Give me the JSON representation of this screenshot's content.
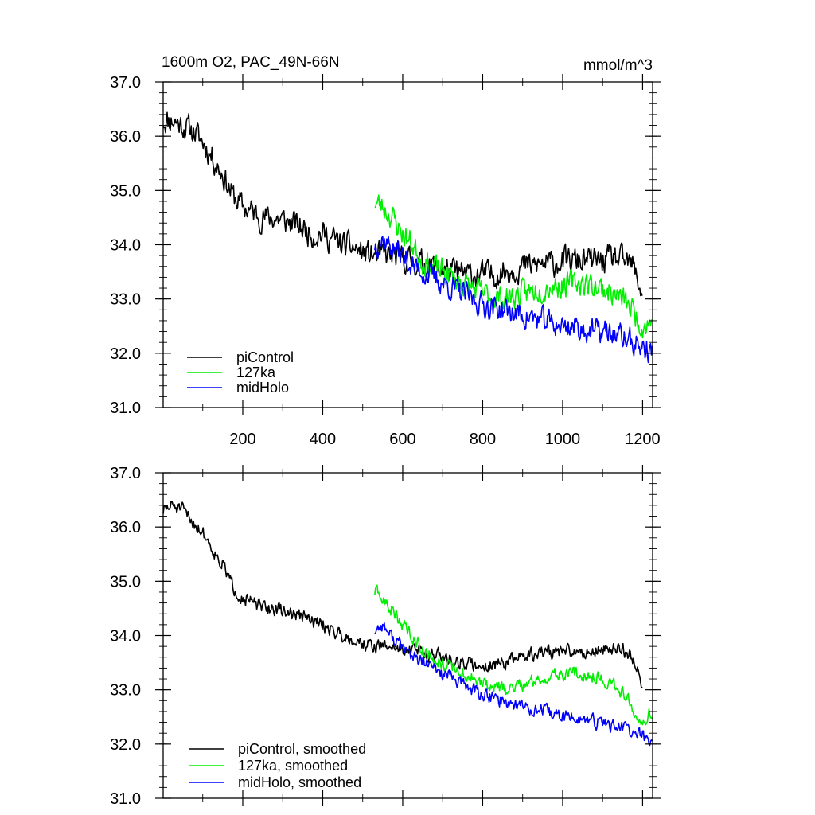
{
  "chart_data": [
    {
      "type": "line",
      "title": "1600m O2, PAC_49N-66N",
      "units_label": "mmol/m^3",
      "xlim": [
        1,
        1225
      ],
      "ylim": [
        31.0,
        37.0
      ],
      "x_ticks": [
        200,
        400,
        600,
        800,
        1000,
        1200
      ],
      "x_tick_labels": [
        "200",
        "400",
        "600",
        "800",
        "1000",
        "1200"
      ],
      "y_ticks": [
        31.0,
        32.0,
        33.0,
        34.0,
        35.0,
        36.0,
        37.0
      ],
      "y_tick_labels": [
        "31.0",
        "32.0",
        "33.0",
        "34.0",
        "35.0",
        "36.0",
        "37.0"
      ],
      "legend_position": "bottom-left",
      "series": [
        {
          "name": "piControl",
          "color": "#000000",
          "x": [
            1,
            25,
            50,
            75,
            100,
            125,
            150,
            175,
            200,
            225,
            250,
            275,
            300,
            325,
            350,
            375,
            400,
            425,
            450,
            475,
            500,
            525,
            550,
            575,
            600,
            625,
            650,
            675,
            700,
            725,
            750,
            775,
            800,
            825,
            850,
            875,
            900,
            925,
            950,
            975,
            1000,
            1025,
            1050,
            1075,
            1100,
            1125,
            1150,
            1175,
            1200
          ],
          "values": [
            36.3,
            36.3,
            36.2,
            36.1,
            35.9,
            35.6,
            35.3,
            34.9,
            34.7,
            34.6,
            34.5,
            34.5,
            34.45,
            34.4,
            34.3,
            34.2,
            34.2,
            34.1,
            34.0,
            33.95,
            33.85,
            33.8,
            33.8,
            33.8,
            33.75,
            33.7,
            33.65,
            33.6,
            33.55,
            33.5,
            33.45,
            33.45,
            33.45,
            33.45,
            33.5,
            33.55,
            33.6,
            33.6,
            33.65,
            33.65,
            33.7,
            33.7,
            33.7,
            33.7,
            33.7,
            33.75,
            33.7,
            33.6,
            33.1
          ],
          "noise": 0.38,
          "seed": 11
        },
        {
          "name": "127ka",
          "color": "#00ee00",
          "x": [
            530,
            550,
            575,
            600,
            625,
            650,
            675,
            700,
            725,
            750,
            775,
            800,
            825,
            850,
            875,
            900,
            925,
            950,
            975,
            1000,
            1025,
            1050,
            1075,
            1100,
            1125,
            1150,
            1175,
            1200,
            1225
          ],
          "values": [
            34.8,
            34.7,
            34.5,
            34.2,
            34.0,
            33.7,
            33.6,
            33.5,
            33.4,
            33.3,
            33.2,
            33.1,
            33.05,
            33.0,
            33.05,
            33.1,
            33.15,
            33.2,
            33.25,
            33.25,
            33.3,
            33.3,
            33.25,
            33.2,
            33.1,
            33.0,
            32.8,
            32.5,
            32.6
          ],
          "noise": 0.36,
          "seed": 23
        },
        {
          "name": "midHolo",
          "color": "#0000ff",
          "x": [
            530,
            550,
            575,
            600,
            625,
            650,
            675,
            700,
            725,
            750,
            775,
            800,
            825,
            850,
            875,
            900,
            925,
            950,
            975,
            1000,
            1025,
            1050,
            1075,
            1100,
            1125,
            1150,
            1175,
            1200,
            1225
          ],
          "values": [
            34.0,
            34.1,
            33.95,
            33.8,
            33.6,
            33.5,
            33.4,
            33.3,
            33.2,
            33.1,
            33.0,
            32.9,
            32.85,
            32.8,
            32.75,
            32.7,
            32.65,
            32.6,
            32.55,
            32.5,
            32.5,
            32.45,
            32.4,
            32.4,
            32.35,
            32.3,
            32.2,
            32.1,
            32.0
          ],
          "noise": 0.36,
          "seed": 37
        }
      ]
    },
    {
      "type": "line",
      "xlim": [
        1,
        1225
      ],
      "ylim": [
        31.0,
        37.0
      ],
      "x_ticks": [
        200,
        400,
        600,
        800,
        1000,
        1200
      ],
      "y_ticks": [
        31.0,
        32.0,
        33.0,
        34.0,
        35.0,
        36.0,
        37.0
      ],
      "y_tick_labels": [
        "31.0",
        "32.0",
        "33.0",
        "34.0",
        "35.0",
        "36.0",
        "37.0"
      ],
      "legend_position": "bottom-left",
      "series": [
        {
          "name": "piControl, smoothed",
          "color": "#000000",
          "x": [
            1,
            25,
            50,
            75,
            100,
            125,
            150,
            175,
            200,
            225,
            250,
            275,
            300,
            325,
            350,
            375,
            400,
            425,
            450,
            475,
            500,
            525,
            550,
            575,
            600,
            625,
            650,
            675,
            700,
            725,
            750,
            775,
            800,
            825,
            850,
            875,
            900,
            925,
            950,
            975,
            1000,
            1025,
            1050,
            1075,
            1100,
            1125,
            1150,
            1175,
            1200
          ],
          "values": [
            36.3,
            36.4,
            36.3,
            36.1,
            35.9,
            35.6,
            35.3,
            34.9,
            34.7,
            34.6,
            34.5,
            34.5,
            34.45,
            34.4,
            34.35,
            34.25,
            34.2,
            34.1,
            34.0,
            33.95,
            33.85,
            33.8,
            33.8,
            33.8,
            33.75,
            33.75,
            33.7,
            33.65,
            33.6,
            33.55,
            33.5,
            33.45,
            33.45,
            33.45,
            33.5,
            33.55,
            33.6,
            33.65,
            33.7,
            33.7,
            33.7,
            33.7,
            33.7,
            33.7,
            33.75,
            33.75,
            33.75,
            33.6,
            33.1
          ],
          "noise": 0.2,
          "seed": 51
        },
        {
          "name": "127ka, smoothed",
          "color": "#00ee00",
          "x": [
            530,
            550,
            575,
            600,
            625,
            650,
            675,
            700,
            725,
            750,
            775,
            800,
            825,
            850,
            875,
            900,
            925,
            950,
            975,
            1000,
            1025,
            1050,
            1075,
            1100,
            1125,
            1150,
            1175,
            1200,
            1225
          ],
          "values": [
            34.8,
            34.65,
            34.45,
            34.2,
            34.0,
            33.75,
            33.6,
            33.5,
            33.4,
            33.3,
            33.2,
            33.1,
            33.05,
            33.0,
            33.05,
            33.1,
            33.15,
            33.2,
            33.25,
            33.3,
            33.3,
            33.3,
            33.25,
            33.2,
            33.1,
            32.95,
            32.7,
            32.45,
            32.6
          ],
          "noise": 0.2,
          "seed": 63
        },
        {
          "name": "midHolo, smoothed",
          "color": "#0000ff",
          "x": [
            530,
            550,
            575,
            600,
            625,
            650,
            675,
            700,
            725,
            750,
            775,
            800,
            825,
            850,
            875,
            900,
            925,
            950,
            975,
            1000,
            1025,
            1050,
            1075,
            1100,
            1125,
            1150,
            1175,
            1200,
            1225
          ],
          "values": [
            34.1,
            34.2,
            33.95,
            33.8,
            33.6,
            33.5,
            33.4,
            33.3,
            33.2,
            33.1,
            33.0,
            32.9,
            32.85,
            32.8,
            32.75,
            32.7,
            32.65,
            32.6,
            32.55,
            32.5,
            32.5,
            32.45,
            32.4,
            32.4,
            32.35,
            32.3,
            32.2,
            32.15,
            32.0
          ],
          "noise": 0.2,
          "seed": 77
        }
      ]
    }
  ]
}
